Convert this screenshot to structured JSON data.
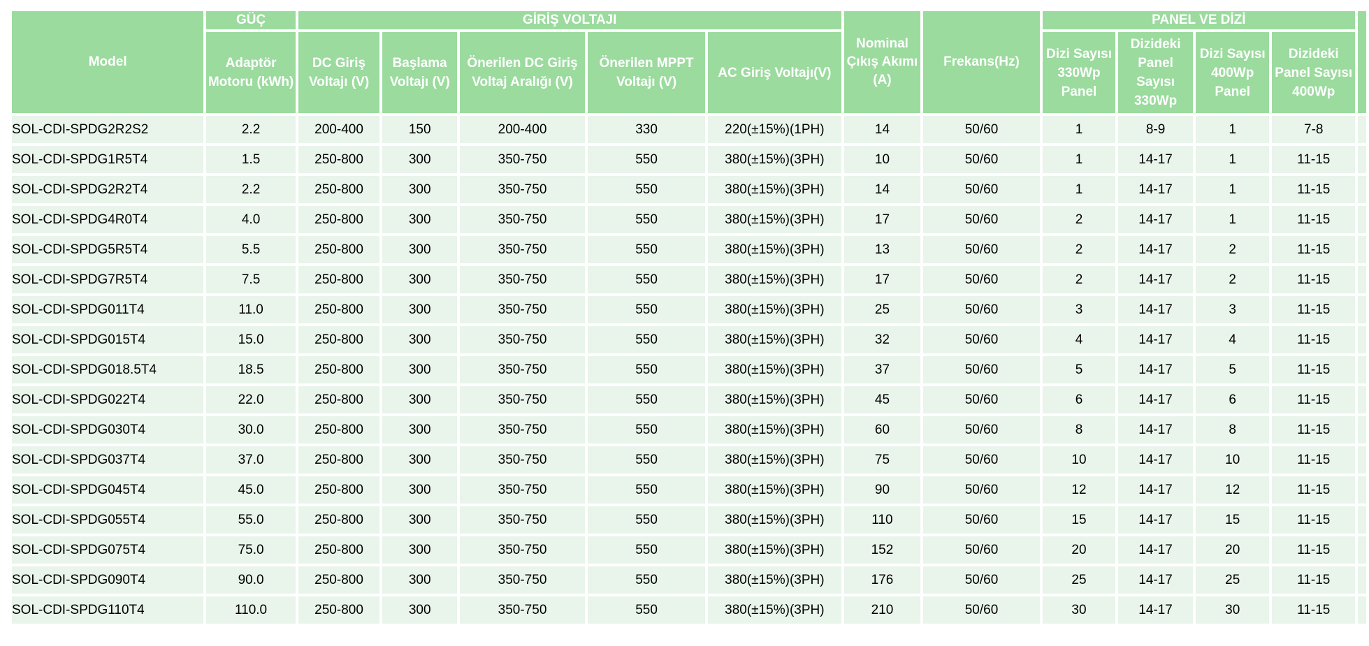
{
  "table": {
    "groups": {
      "power": "GÜÇ",
      "input_voltage": "GİRİŞ VOLTAJI",
      "panel_array": "PANEL VE DİZİ"
    },
    "columns": [
      "Model",
      "Adaptör Motoru (kWh)",
      "DC Giriş Voltajı (V)",
      "Başlama Voltajı (V)",
      "Önerilen DC Giriş Voltaj Aralığı (V)",
      "Önerilen MPPT Voltajı (V)",
      "AC Giriş Voltajı(V)",
      "Nominal Çıkış Akımı (A)",
      "Frekans(Hz)",
      "Dizi Sayısı 330Wp Panel",
      "Dizideki Panel Sayısı 330Wp",
      "Dizi Sayısı 400Wp Panel",
      "Dizideki Panel Sayısı 400Wp"
    ],
    "rows": [
      [
        "SOL-CDI-SPDG2R2S2",
        "2.2",
        "200-400",
        "150",
        "200-400",
        "330",
        "220(±15%)(1PH)",
        "14",
        "50/60",
        "1",
        "8-9",
        "1",
        "7-8"
      ],
      [
        "SOL-CDI-SPDG1R5T4",
        "1.5",
        "250-800",
        "300",
        "350-750",
        "550",
        "380(±15%)(3PH)",
        "10",
        "50/60",
        "1",
        "14-17",
        "1",
        "11-15"
      ],
      [
        "SOL-CDI-SPDG2R2T4",
        "2.2",
        "250-800",
        "300",
        "350-750",
        "550",
        "380(±15%)(3PH)",
        "14",
        "50/60",
        "1",
        "14-17",
        "1",
        "11-15"
      ],
      [
        "SOL-CDI-SPDG4R0T4",
        "4.0",
        "250-800",
        "300",
        "350-750",
        "550",
        "380(±15%)(3PH)",
        "17",
        "50/60",
        "2",
        "14-17",
        "1",
        "11-15"
      ],
      [
        "SOL-CDI-SPDG5R5T4",
        "5.5",
        "250-800",
        "300",
        "350-750",
        "550",
        "380(±15%)(3PH)",
        "13",
        "50/60",
        "2",
        "14-17",
        "2",
        "11-15"
      ],
      [
        "SOL-CDI-SPDG7R5T4",
        "7.5",
        "250-800",
        "300",
        "350-750",
        "550",
        "380(±15%)(3PH)",
        "17",
        "50/60",
        "2",
        "14-17",
        "2",
        "11-15"
      ],
      [
        "SOL-CDI-SPDG011T4",
        "11.0",
        "250-800",
        "300",
        "350-750",
        "550",
        "380(±15%)(3PH)",
        "25",
        "50/60",
        "3",
        "14-17",
        "3",
        "11-15"
      ],
      [
        "SOL-CDI-SPDG015T4",
        "15.0",
        "250-800",
        "300",
        "350-750",
        "550",
        "380(±15%)(3PH)",
        "32",
        "50/60",
        "4",
        "14-17",
        "4",
        "11-15"
      ],
      [
        "SOL-CDI-SPDG018.5T4",
        "18.5",
        "250-800",
        "300",
        "350-750",
        "550",
        "380(±15%)(3PH)",
        "37",
        "50/60",
        "5",
        "14-17",
        "5",
        "11-15"
      ],
      [
        "SOL-CDI-SPDG022T4",
        "22.0",
        "250-800",
        "300",
        "350-750",
        "550",
        "380(±15%)(3PH)",
        "45",
        "50/60",
        "6",
        "14-17",
        "6",
        "11-15"
      ],
      [
        "SOL-CDI-SPDG030T4",
        "30.0",
        "250-800",
        "300",
        "350-750",
        "550",
        "380(±15%)(3PH)",
        "60",
        "50/60",
        "8",
        "14-17",
        "8",
        "11-15"
      ],
      [
        "SOL-CDI-SPDG037T4",
        "37.0",
        "250-800",
        "300",
        "350-750",
        "550",
        "380(±15%)(3PH)",
        "75",
        "50/60",
        "10",
        "14-17",
        "10",
        "11-15"
      ],
      [
        "SOL-CDI-SPDG045T4",
        "45.0",
        "250-800",
        "300",
        "350-750",
        "550",
        "380(±15%)(3PH)",
        "90",
        "50/60",
        "12",
        "14-17",
        "12",
        "11-15"
      ],
      [
        "SOL-CDI-SPDG055T4",
        "55.0",
        "250-800",
        "300",
        "350-750",
        "550",
        "380(±15%)(3PH)",
        "110",
        "50/60",
        "15",
        "14-17",
        "15",
        "11-15"
      ],
      [
        "SOL-CDI-SPDG075T4",
        "75.0",
        "250-800",
        "300",
        "350-750",
        "550",
        "380(±15%)(3PH)",
        "152",
        "50/60",
        "20",
        "14-17",
        "20",
        "11-15"
      ],
      [
        "SOL-CDI-SPDG090T4",
        "90.0",
        "250-800",
        "300",
        "350-750",
        "550",
        "380(±15%)(3PH)",
        "176",
        "50/60",
        "25",
        "14-17",
        "25",
        "11-15"
      ],
      [
        "SOL-CDI-SPDG110T4",
        "110.0",
        "250-800",
        "300",
        "350-750",
        "550",
        "380(±15%)(3PH)",
        "210",
        "50/60",
        "30",
        "14-17",
        "30",
        "11-15"
      ]
    ],
    "colors": {
      "header_green": "#9BDB9E",
      "row_mint": "#E9F4EB",
      "gap_white": "#FFFFFF",
      "header_text": "#FFFFFF",
      "body_text": "#000000"
    }
  }
}
